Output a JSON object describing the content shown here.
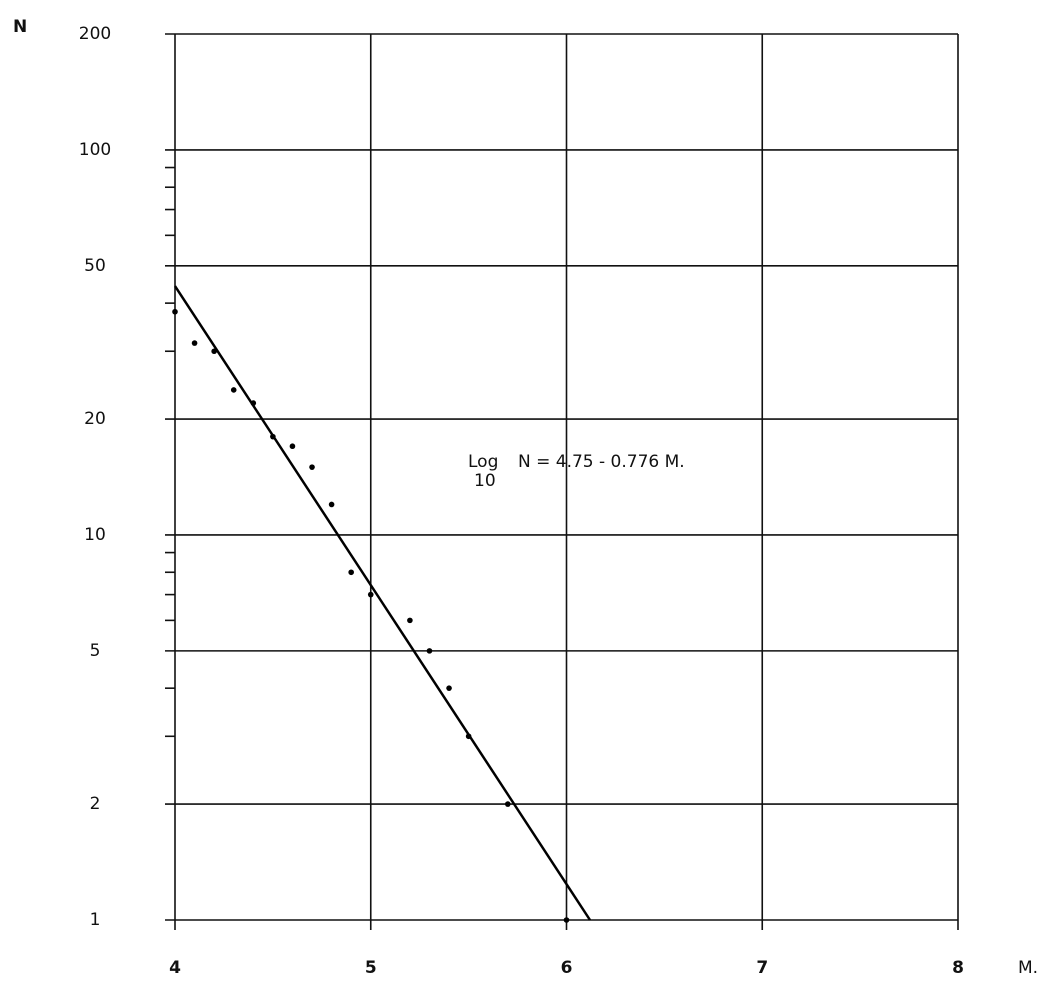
{
  "chart_data": {
    "type": "scatter",
    "y_label": "N",
    "x_label": "M.",
    "points": {
      "x": [
        4.0,
        4.1,
        4.2,
        4.3,
        4.4,
        4.5,
        4.6,
        4.7,
        4.8,
        4.9,
        5.0,
        5.2,
        5.3,
        5.4,
        5.5,
        5.7,
        6.0
      ],
      "values": [
        38,
        31.5,
        30,
        23.8,
        22,
        18,
        17,
        15,
        12,
        8,
        7,
        6,
        5,
        4,
        3,
        2,
        1
      ]
    },
    "fit_line": {
      "x": [
        4,
        6.12
      ],
      "values": [
        44.3,
        1
      ]
    },
    "annotation": {
      "prefix": "Log",
      "subscript": "10",
      "text": "N = 4.75 - 0.776 M."
    },
    "xlim": [
      4,
      8
    ],
    "xticks": [
      4,
      5,
      6,
      7,
      8
    ],
    "ylim": [
      1,
      200
    ],
    "yticks": [
      1,
      2,
      5,
      10,
      20,
      50,
      100,
      200
    ],
    "yminorticks": [
      3,
      4,
      6,
      7,
      8,
      9,
      30,
      40,
      60,
      70,
      80,
      90
    ],
    "log_y": true,
    "grid": true,
    "color": "#000000"
  }
}
